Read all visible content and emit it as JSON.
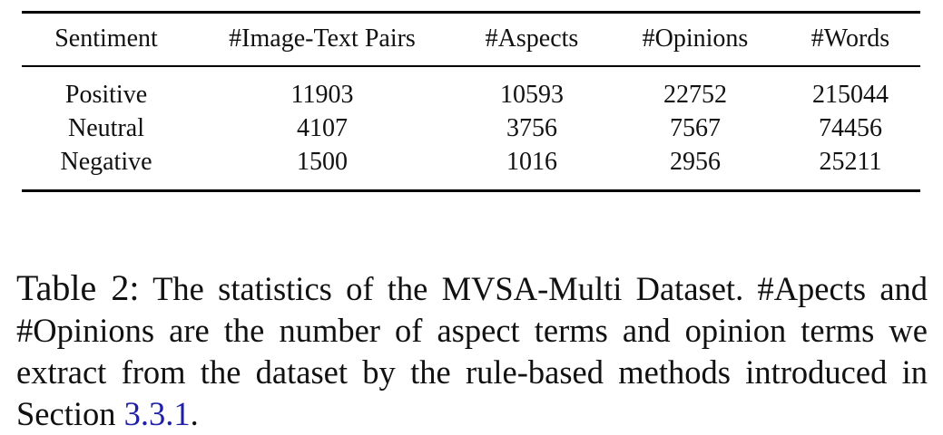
{
  "table": {
    "headers": [
      "Sentiment",
      "#Image-Text Pairs",
      "#Aspects",
      "#Opinions",
      "#Words"
    ],
    "rows": [
      [
        "Positive",
        "11903",
        "10593",
        "22752",
        "215044"
      ],
      [
        "Neutral",
        "4107",
        "3756",
        "7567",
        "74456"
      ],
      [
        "Negative",
        "1500",
        "1016",
        "2956",
        "25211"
      ]
    ]
  },
  "caption": {
    "label": "Table 2:",
    "text": "The statistics of the MVSA-Multi Dataset. #Apects and #Opinions are the number of aspect terms and opinion terms we extract from the dataset by the rule-based methods introduced in Section",
    "ref": "3.3.1",
    "end": "."
  },
  "colors": {
    "text": "#111111",
    "rules": "#000000",
    "link": "#1f1fa8"
  }
}
